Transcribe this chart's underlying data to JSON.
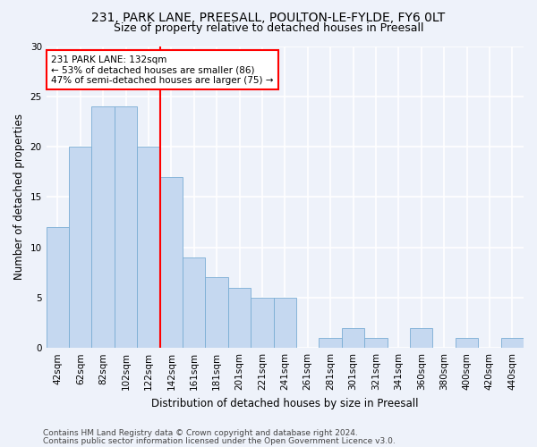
{
  "title_line1": "231, PARK LANE, PREESALL, POULTON-LE-FYLDE, FY6 0LT",
  "title_line2": "Size of property relative to detached houses in Preesall",
  "xlabel": "Distribution of detached houses by size in Preesall",
  "ylabel": "Number of detached properties",
  "categories": [
    "42sqm",
    "62sqm",
    "82sqm",
    "102sqm",
    "122sqm",
    "142sqm",
    "161sqm",
    "181sqm",
    "201sqm",
    "221sqm",
    "241sqm",
    "261sqm",
    "281sqm",
    "301sqm",
    "321sqm",
    "341sqm",
    "360sqm",
    "380sqm",
    "400sqm",
    "420sqm",
    "440sqm"
  ],
  "values": [
    12,
    20,
    24,
    24,
    20,
    17,
    9,
    7,
    6,
    5,
    5,
    0,
    1,
    2,
    1,
    0,
    2,
    0,
    1,
    0,
    1
  ],
  "bar_color": "#c5d8f0",
  "bar_edge_color": "#7aadd4",
  "vline_index": 4,
  "vline_color": "red",
  "annotation_text": "231 PARK LANE: 132sqm\n← 53% of detached houses are smaller (86)\n47% of semi-detached houses are larger (75) →",
  "annotation_box_color": "white",
  "annotation_box_edge_color": "red",
  "ylim": [
    0,
    30
  ],
  "yticks": [
    0,
    5,
    10,
    15,
    20,
    25,
    30
  ],
  "footer_line1": "Contains HM Land Registry data © Crown copyright and database right 2024.",
  "footer_line2": "Contains public sector information licensed under the Open Government Licence v3.0.",
  "background_color": "#eef2fa",
  "grid_color": "white",
  "title_fontsize": 10,
  "subtitle_fontsize": 9,
  "axis_label_fontsize": 8.5,
  "tick_fontsize": 7.5,
  "annotation_fontsize": 7.5,
  "footer_fontsize": 6.5
}
